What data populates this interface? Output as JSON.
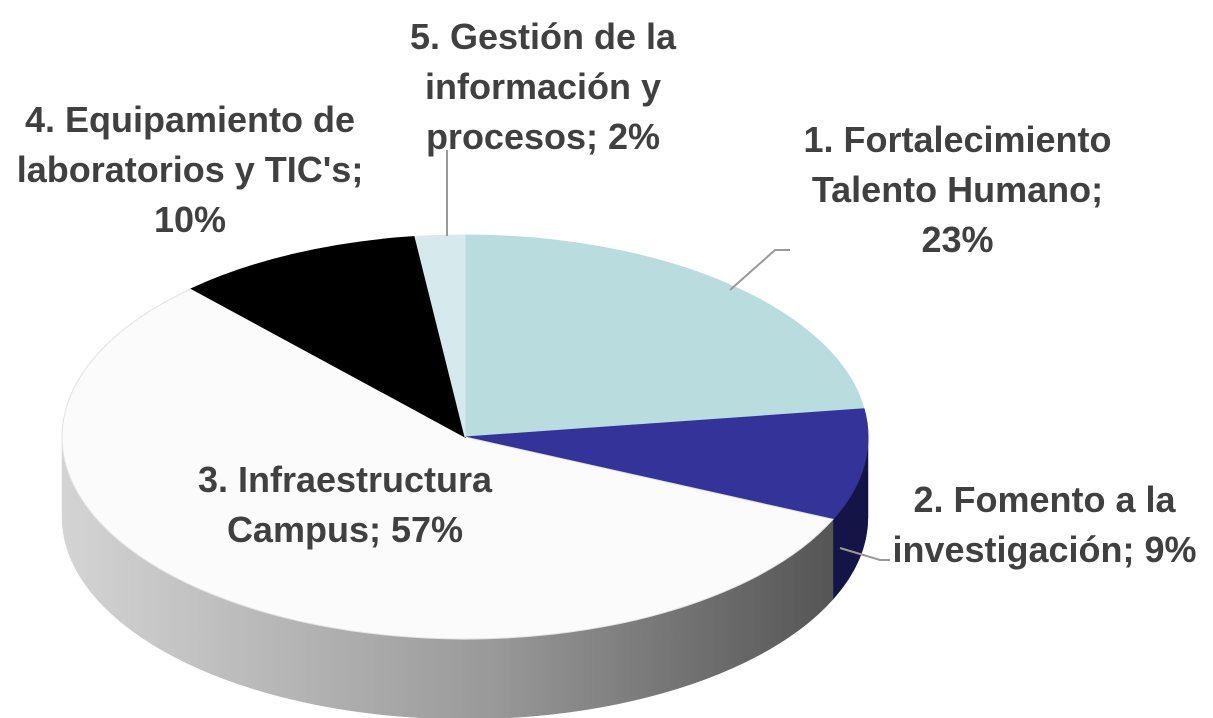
{
  "chart_data": {
    "type": "pie",
    "categories": [
      "1. Fortalecimiento Talento Humano;",
      "2. Fomento a la investigación;",
      "3. Infraestructura Campus;",
      "4. Equipamiento de laboratorios y TIC's;",
      "5. Gestión de la información y procesos;"
    ],
    "values": [
      23,
      9,
      57,
      10,
      2
    ],
    "value_labels": [
      "23%",
      "9%",
      "57%",
      "10%",
      "2%"
    ],
    "colors": [
      "#b9dcdf",
      "#333399",
      "#fbfbfb",
      "#000000",
      "#d6e9ec"
    ],
    "side_colors": [
      "#8fb3b6",
      "#141447",
      "url(#side3)",
      "#000000",
      "#a9c2c5"
    ]
  }
}
